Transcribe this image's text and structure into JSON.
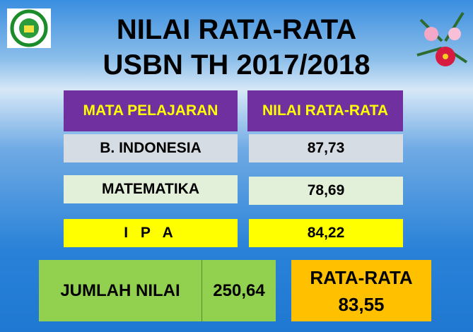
{
  "header": {
    "title_lines": [
      "NILAI RATA-RATA",
      "USBN TH 2017/2018"
    ]
  },
  "table": {
    "columns": [
      "MATA PELAJARAN",
      "NILAI RATA-RATA"
    ],
    "rows": [
      [
        "B. INDONESIA",
        "87,73"
      ],
      [
        "MATEMATIKA",
        "78,69"
      ],
      [
        "I P A",
        "84,22"
      ]
    ]
  },
  "summary": {
    "label": "JUMLAH NILAI",
    "value": "250,64"
  },
  "average": {
    "label": "RATA-RATA",
    "value": "83,55"
  }
}
